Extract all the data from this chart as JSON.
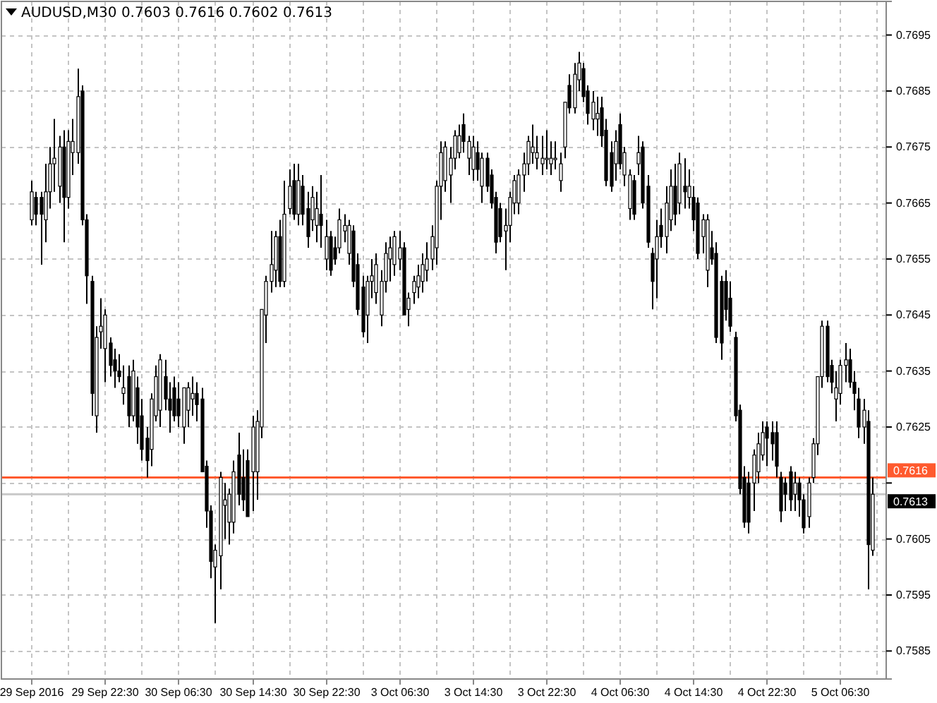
{
  "chart_data": {
    "type": "candlestick",
    "title": "AUDUSD,M30  0.7603 0.7616 0.7602 0.7613",
    "categories": [
      "29 Sep 2016",
      null,
      null,
      null,
      null,
      null,
      null,
      null,
      null,
      null,
      null,
      null,
      null,
      null,
      null,
      null,
      "29 Sep 22:30",
      null,
      null,
      null,
      null,
      null,
      null,
      null,
      null,
      null,
      null,
      null,
      null,
      null,
      null,
      null,
      "30 Sep 06:30",
      null,
      null,
      null,
      null,
      null,
      null,
      null,
      null,
      null,
      null,
      null,
      null,
      null,
      null,
      null,
      "30 Sep 14:30",
      null,
      null,
      null,
      null,
      null,
      null,
      null,
      null,
      null,
      null,
      null,
      null,
      null,
      null,
      null,
      "30 Sep 22:30",
      null,
      null,
      null,
      null,
      null,
      null,
      null,
      null,
      null,
      null,
      null,
      null,
      null,
      null,
      null,
      "3 Oct 06:30",
      null,
      null,
      null,
      null,
      null,
      null,
      null,
      null,
      null,
      null,
      null,
      null,
      null,
      null,
      null,
      "3 Oct 14:30",
      null,
      null,
      null,
      null,
      null,
      null,
      null,
      null,
      null,
      null,
      null,
      null,
      null,
      null,
      null,
      "3 Oct 22:30",
      null,
      null,
      null,
      null,
      null,
      null,
      null,
      null,
      null,
      null,
      null,
      null,
      null,
      null,
      null,
      "4 Oct 06:30",
      null,
      null,
      null,
      null,
      null,
      null,
      null,
      null,
      null,
      null,
      null,
      null,
      null,
      null,
      null,
      "4 Oct 14:30",
      null,
      null,
      null,
      null,
      null,
      null,
      null,
      null,
      null,
      null,
      null,
      null,
      null,
      null,
      null,
      "4 Oct 22:30",
      null,
      null,
      null,
      null,
      null,
      null,
      null,
      null,
      null,
      null,
      null,
      null,
      null,
      null,
      null,
      "5 Oct 06:30",
      null,
      null,
      null,
      null,
      null,
      null,
      null
    ],
    "ohlc": [
      [
        0.7662,
        0.7669,
        0.7661,
        0.7667
      ],
      [
        0.7666,
        0.7667,
        0.7661,
        0.7663
      ],
      [
        0.7666,
        0.7667,
        0.7654,
        0.7663
      ],
      [
        0.7662,
        0.7672,
        0.7658,
        0.7667
      ],
      [
        0.7667,
        0.7675,
        0.7664,
        0.7672
      ],
      [
        0.7672,
        0.768,
        0.7667,
        0.7673
      ],
      [
        0.7668,
        0.7677,
        0.7665,
        0.7675
      ],
      [
        0.7675,
        0.7678,
        0.7658,
        0.7666
      ],
      [
        0.7666,
        0.7678,
        0.7664,
        0.7676
      ],
      [
        0.7674,
        0.768,
        0.767,
        0.7676
      ],
      [
        0.7674,
        0.7689,
        0.7672,
        0.7684
      ],
      [
        0.7685,
        0.7686,
        0.7661,
        0.7662
      ],
      [
        0.7662,
        0.7663,
        0.7647,
        0.7652
      ],
      [
        0.7651,
        0.7652,
        0.7627,
        0.7631
      ],
      [
        0.7627,
        0.7643,
        0.7624,
        0.7641
      ],
      [
        0.7642,
        0.7648,
        0.7639,
        0.7643
      ],
      [
        0.7639,
        0.7646,
        0.7633,
        0.7645
      ],
      [
        0.764,
        0.7641,
        0.7634,
        0.7636
      ],
      [
        0.7637,
        0.7639,
        0.7632,
        0.7635
      ],
      [
        0.7635,
        0.7638,
        0.7633,
        0.7634
      ],
      [
        0.7631,
        0.7636,
        0.7629,
        0.7632
      ],
      [
        0.7634,
        0.7636,
        0.7625,
        0.7627
      ],
      [
        0.7627,
        0.7637,
        0.7626,
        0.7635
      ],
      [
        0.7632,
        0.7634,
        0.7622,
        0.7625
      ],
      [
        0.7627,
        0.763,
        0.7619,
        0.7621
      ],
      [
        0.7623,
        0.7625,
        0.7616,
        0.7619
      ],
      [
        0.7621,
        0.7631,
        0.7618,
        0.763
      ],
      [
        0.7627,
        0.7636,
        0.7626,
        0.7634
      ],
      [
        0.7628,
        0.7638,
        0.7625,
        0.7637
      ],
      [
        0.7634,
        0.7637,
        0.7628,
        0.763
      ],
      [
        0.763,
        0.7633,
        0.7624,
        0.7628
      ],
      [
        0.7632,
        0.7634,
        0.7626,
        0.7627
      ],
      [
        0.763,
        0.7633,
        0.7625,
        0.7627
      ],
      [
        0.7625,
        0.7632,
        0.7622,
        0.7632
      ],
      [
        0.7628,
        0.7633,
        0.7625,
        0.7632
      ],
      [
        0.763,
        0.7634,
        0.7627,
        0.7631
      ],
      [
        0.7631,
        0.7633,
        0.7626,
        0.7629
      ],
      [
        0.763,
        0.7632,
        0.7617,
        0.7617
      ],
      [
        0.7618,
        0.7619,
        0.7607,
        0.761
      ],
      [
        0.761,
        0.7611,
        0.7598,
        0.7601
      ],
      [
        0.76,
        0.7604,
        0.759,
        0.7603
      ],
      [
        0.7602,
        0.7617,
        0.7596,
        0.7616
      ],
      [
        0.7611,
        0.7615,
        0.7605,
        0.7612
      ],
      [
        0.7608,
        0.7614,
        0.7604,
        0.7613
      ],
      [
        0.7608,
        0.7619,
        0.7606,
        0.7617
      ],
      [
        0.762,
        0.7624,
        0.7611,
        0.7613
      ],
      [
        0.7616,
        0.7621,
        0.761,
        0.7612
      ],
      [
        0.7619,
        0.7621,
        0.7609,
        0.7609
      ],
      [
        0.7617,
        0.7627,
        0.761,
        0.7625
      ],
      [
        0.7617,
        0.7628,
        0.7612,
        0.7626
      ],
      [
        0.7625,
        0.7646,
        0.7623,
        0.7646
      ],
      [
        0.7645,
        0.7652,
        0.764,
        0.7651
      ],
      [
        0.7651,
        0.766,
        0.7649,
        0.7654
      ],
      [
        0.7653,
        0.766,
        0.765,
        0.7659
      ],
      [
        0.7659,
        0.7662,
        0.765,
        0.7651
      ],
      [
        0.7651,
        0.7669,
        0.765,
        0.7663
      ],
      [
        0.7664,
        0.7671,
        0.7663,
        0.7668
      ],
      [
        0.7669,
        0.7672,
        0.7662,
        0.7663
      ],
      [
        0.7663,
        0.7672,
        0.7661,
        0.7669
      ],
      [
        0.7668,
        0.767,
        0.7661,
        0.7663
      ],
      [
        0.7664,
        0.7667,
        0.7657,
        0.7659
      ],
      [
        0.7662,
        0.7668,
        0.766,
        0.7666
      ],
      [
        0.7661,
        0.7667,
        0.7658,
        0.7664
      ],
      [
        0.7663,
        0.767,
        0.7657,
        0.7661
      ],
      [
        0.7655,
        0.7662,
        0.7653,
        0.7659
      ],
      [
        0.7659,
        0.766,
        0.7652,
        0.7653
      ],
      [
        0.7657,
        0.7659,
        0.7654,
        0.7655
      ],
      [
        0.7657,
        0.7664,
        0.7656,
        0.7662
      ],
      [
        0.766,
        0.7663,
        0.7658,
        0.7661
      ],
      [
        0.7656,
        0.7662,
        0.7654,
        0.7661
      ],
      [
        0.766,
        0.7661,
        0.765,
        0.7651
      ],
      [
        0.7654,
        0.7656,
        0.7645,
        0.7646
      ],
      [
        0.765,
        0.7652,
        0.7641,
        0.7642
      ],
      [
        0.7645,
        0.7652,
        0.764,
        0.7651
      ],
      [
        0.7651,
        0.7655,
        0.7648,
        0.7652
      ],
      [
        0.7649,
        0.7656,
        0.7647,
        0.7654
      ],
      [
        0.7645,
        0.7653,
        0.7643,
        0.7651
      ],
      [
        0.7651,
        0.7658,
        0.7649,
        0.7656
      ],
      [
        0.7655,
        0.7659,
        0.7651,
        0.7657
      ],
      [
        0.7654,
        0.766,
        0.7652,
        0.7659
      ],
      [
        0.7655,
        0.766,
        0.7653,
        0.7657
      ],
      [
        0.7657,
        0.7658,
        0.7645,
        0.7645
      ],
      [
        0.7646,
        0.7649,
        0.7643,
        0.7648
      ],
      [
        0.7649,
        0.7652,
        0.7647,
        0.7651
      ],
      [
        0.765,
        0.7654,
        0.7648,
        0.7652
      ],
      [
        0.7651,
        0.7656,
        0.7649,
        0.7654
      ],
      [
        0.7653,
        0.7658,
        0.7651,
        0.7655
      ],
      [
        0.7655,
        0.7661,
        0.7653,
        0.7659
      ],
      [
        0.7657,
        0.7669,
        0.7654,
        0.7668
      ],
      [
        0.7668,
        0.7676,
        0.7662,
        0.7674
      ],
      [
        0.7669,
        0.7676,
        0.7667,
        0.7675
      ],
      [
        0.767,
        0.7675,
        0.7665,
        0.7673
      ],
      [
        0.7673,
        0.7678,
        0.7671,
        0.7677
      ],
      [
        0.7674,
        0.7679,
        0.7673,
        0.7677
      ],
      [
        0.7679,
        0.7681,
        0.7674,
        0.7676
      ],
      [
        0.7673,
        0.7677,
        0.767,
        0.7676
      ],
      [
        0.7671,
        0.7677,
        0.7669,
        0.7675
      ],
      [
        0.7674,
        0.7676,
        0.7669,
        0.7671
      ],
      [
        0.7668,
        0.7674,
        0.7665,
        0.7673
      ],
      [
        0.7673,
        0.7674,
        0.7667,
        0.7668
      ],
      [
        0.767,
        0.7671,
        0.7664,
        0.7665
      ],
      [
        0.7666,
        0.7667,
        0.7656,
        0.7658
      ],
      [
        0.7664,
        0.7665,
        0.7658,
        0.7659
      ],
      [
        0.766,
        0.7664,
        0.7653,
        0.7661
      ],
      [
        0.7661,
        0.7667,
        0.7658,
        0.7666
      ],
      [
        0.7665,
        0.767,
        0.7663,
        0.7669
      ],
      [
        0.7665,
        0.7671,
        0.7663,
        0.767
      ],
      [
        0.767,
        0.7674,
        0.7667,
        0.7672
      ],
      [
        0.7672,
        0.7677,
        0.767,
        0.7676
      ],
      [
        0.7674,
        0.7679,
        0.7672,
        0.7675
      ],
      [
        0.7673,
        0.7677,
        0.7671,
        0.7674
      ],
      [
        0.7672,
        0.7677,
        0.767,
        0.7673
      ],
      [
        0.7673,
        0.7678,
        0.7671,
        0.7673
      ],
      [
        0.7672,
        0.7676,
        0.767,
        0.7673
      ],
      [
        0.7673,
        0.7676,
        0.7671,
        0.7673
      ],
      [
        0.7669,
        0.7674,
        0.7667,
        0.7672
      ],
      [
        0.7675,
        0.7683,
        0.7673,
        0.7683
      ],
      [
        0.7686,
        0.7688,
        0.7681,
        0.7682
      ],
      [
        0.7682,
        0.769,
        0.7681,
        0.7688
      ],
      [
        0.7687,
        0.7692,
        0.7685,
        0.769
      ],
      [
        0.7689,
        0.769,
        0.7683,
        0.7684
      ],
      [
        0.7685,
        0.7686,
        0.7679,
        0.7681
      ],
      [
        0.768,
        0.7685,
        0.7678,
        0.7683
      ],
      [
        0.768,
        0.7684,
        0.7677,
        0.7681
      ],
      [
        0.7682,
        0.7684,
        0.7675,
        0.7677
      ],
      [
        0.7678,
        0.768,
        0.7668,
        0.7669
      ],
      [
        0.7674,
        0.7676,
        0.7667,
        0.7668
      ],
      [
        0.7672,
        0.7678,
        0.7669,
        0.7676
      ],
      [
        0.7679,
        0.7681,
        0.7671,
        0.7672
      ],
      [
        0.767,
        0.7675,
        0.7668,
        0.7674
      ],
      [
        0.7664,
        0.7671,
        0.7662,
        0.767
      ],
      [
        0.7669,
        0.767,
        0.7662,
        0.7663
      ],
      [
        0.7672,
        0.7677,
        0.767,
        0.7674
      ],
      [
        0.7675,
        0.7676,
        0.7664,
        0.7665
      ],
      [
        0.7668,
        0.767,
        0.7657,
        0.7658
      ],
      [
        0.7656,
        0.7657,
        0.7646,
        0.7651
      ],
      [
        0.7655,
        0.7662,
        0.7648,
        0.7659
      ],
      [
        0.7661,
        0.7664,
        0.7657,
        0.7659
      ],
      [
        0.7659,
        0.7668,
        0.7656,
        0.7665
      ],
      [
        0.7662,
        0.7671,
        0.766,
        0.7668
      ],
      [
        0.7668,
        0.7672,
        0.7661,
        0.7663
      ],
      [
        0.7665,
        0.7674,
        0.7663,
        0.7672
      ],
      [
        0.7668,
        0.7673,
        0.7664,
        0.7667
      ],
      [
        0.7666,
        0.7671,
        0.7664,
        0.7668
      ],
      [
        0.7666,
        0.7668,
        0.766,
        0.7662
      ],
      [
        0.7665,
        0.7666,
        0.7655,
        0.7656
      ],
      [
        0.7659,
        0.7663,
        0.7656,
        0.7662
      ],
      [
        0.7653,
        0.7663,
        0.765,
        0.7662
      ],
      [
        0.7657,
        0.766,
        0.7654,
        0.7655
      ],
      [
        0.7656,
        0.7658,
        0.764,
        0.7641
      ],
      [
        0.7651,
        0.7652,
        0.7637,
        0.764
      ],
      [
        0.7651,
        0.7653,
        0.7644,
        0.7646
      ],
      [
        0.7648,
        0.7651,
        0.7642,
        0.7643
      ],
      [
        0.7641,
        0.7642,
        0.7626,
        0.7627
      ],
      [
        0.7628,
        0.7629,
        0.7613,
        0.7614
      ],
      [
        0.7616,
        0.7618,
        0.7607,
        0.7608
      ],
      [
        0.7615,
        0.7617,
        0.7606,
        0.7608
      ],
      [
        0.7615,
        0.7621,
        0.761,
        0.762
      ],
      [
        0.7617,
        0.7624,
        0.7615,
        0.7622
      ],
      [
        0.762,
        0.7626,
        0.7619,
        0.7624
      ],
      [
        0.7625,
        0.7626,
        0.7618,
        0.7623
      ],
      [
        0.7624,
        0.7626,
        0.7619,
        0.7622
      ],
      [
        0.7624,
        0.7626,
        0.7616,
        0.7618
      ],
      [
        0.7616,
        0.7617,
        0.7608,
        0.761
      ],
      [
        0.7615,
        0.7616,
        0.761,
        0.7613
      ],
      [
        0.7617,
        0.7618,
        0.761,
        0.7612
      ],
      [
        0.7613,
        0.7617,
        0.761,
        0.7615
      ],
      [
        0.7615,
        0.7616,
        0.7609,
        0.7612
      ],
      [
        0.7612,
        0.7613,
        0.7606,
        0.7607
      ],
      [
        0.7609,
        0.7616,
        0.7607,
        0.7615
      ],
      [
        0.7616,
        0.7623,
        0.7615,
        0.7622
      ],
      [
        0.7622,
        0.7634,
        0.762,
        0.7634
      ],
      [
        0.7634,
        0.7644,
        0.7632,
        0.7643
      ],
      [
        0.7643,
        0.7644,
        0.7633,
        0.7634
      ],
      [
        0.7636,
        0.7637,
        0.7631,
        0.7633
      ],
      [
        0.763,
        0.7635,
        0.7626,
        0.7632
      ],
      [
        0.7631,
        0.7637,
        0.7629,
        0.7636
      ],
      [
        0.7636,
        0.764,
        0.7633,
        0.7637
      ],
      [
        0.7637,
        0.7639,
        0.7632,
        0.7633
      ],
      [
        0.7633,
        0.7635,
        0.7628,
        0.7631
      ],
      [
        0.763,
        0.7632,
        0.7623,
        0.7625
      ],
      [
        0.7625,
        0.763,
        0.7622,
        0.7628
      ],
      [
        0.7626,
        0.7628,
        0.7596,
        0.7604
      ],
      [
        0.7603,
        0.7616,
        0.7602,
        0.7613
      ]
    ],
    "ylim": [
      0.758,
      0.7701
    ],
    "yticks": [
      0.7695,
      0.7685,
      0.7675,
      0.7665,
      0.7655,
      0.7645,
      0.7635,
      0.7625,
      {
        "value": 0.7615,
        "label": null
      },
      0.7605,
      0.7595,
      0.7585
    ],
    "grid": true,
    "ref_lines": [
      {
        "axis": "y",
        "value": 0.7616,
        "label": "0.7616",
        "color": "#ff5a2e"
      },
      {
        "axis": "y",
        "value": 0.7613,
        "label": "0.7613",
        "color": "#c8c8c8"
      }
    ]
  }
}
